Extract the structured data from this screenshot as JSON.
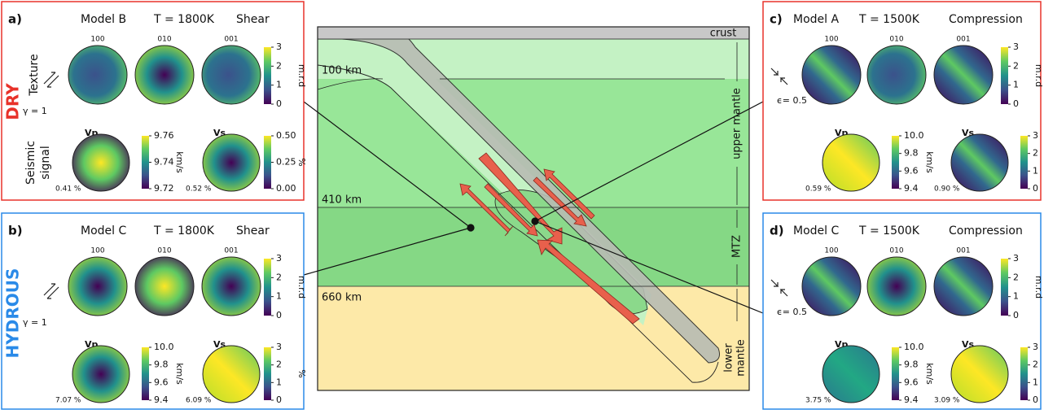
{
  "side_labels": {
    "dry": "DRY",
    "hydrous": "HYDROUS"
  },
  "row_labels": {
    "texture": "Texture",
    "seismic": [
      "Seismic",
      "signal"
    ]
  },
  "panels": [
    {
      "label": "a)",
      "model": "Model B",
      "temperature": "T = 1800K",
      "deformation": "Shear",
      "strain": "γ = 1",
      "pole_figures": [
        "100",
        "010",
        "001"
      ],
      "texture_ticks": [
        "3",
        "2",
        "1",
        "0"
      ],
      "texture_unit": "m.r.d",
      "vp_label": "Vp",
      "vp_ticks": [
        "9.76",
        "9.74",
        "9.72"
      ],
      "vp_unit": "km/s",
      "vp_anisotropy": "0.41 %",
      "vs_label": "Vs",
      "vs_ticks": [
        "0.50",
        "0.25",
        "0.00"
      ],
      "vs_unit": "%",
      "vs_anisotropy": "0.52 %"
    },
    {
      "label": "b)",
      "model": "Model C",
      "temperature": "T = 1800K",
      "deformation": "Shear",
      "strain": "γ = 1",
      "pole_figures": [
        "100",
        "010",
        "001"
      ],
      "texture_ticks": [
        "3",
        "2",
        "1",
        "0"
      ],
      "texture_unit": "m.r.d",
      "vp_label": "Vp",
      "vp_ticks": [
        "10.0",
        "9.8",
        "9.6",
        "9.4"
      ],
      "vp_unit": "km/s",
      "vp_anisotropy": "7.07 %",
      "vs_label": "Vs",
      "vs_ticks": [
        "3",
        "2",
        "1",
        "0"
      ],
      "vs_unit": "%",
      "vs_anisotropy": "6.09 %"
    },
    {
      "label": "c)",
      "model": "Model A",
      "temperature": "T = 1500K",
      "deformation": "Compression",
      "strain": "ϵ= 0.5",
      "pole_figures": [
        "100",
        "010",
        "001"
      ],
      "texture_ticks": [
        "3",
        "2",
        "1",
        "0"
      ],
      "texture_unit": "m.r.d",
      "vp_label": "Vp",
      "vp_ticks": [
        "10.0",
        "9.8",
        "9.6",
        "9.4"
      ],
      "vp_unit": "km/s",
      "vp_anisotropy": "0.59 %",
      "vs_label": "Vs",
      "vs_ticks": [
        "3",
        "2",
        "1",
        "0"
      ],
      "vs_unit": "%",
      "vs_anisotropy": "0.90 %"
    },
    {
      "label": "d)",
      "model": "Model C",
      "temperature": "T = 1500K",
      "deformation": "Compression",
      "strain": "ϵ= 0.5",
      "pole_figures": [
        "100",
        "010",
        "001"
      ],
      "texture_ticks": [
        "3",
        "2",
        "1",
        "0"
      ],
      "texture_unit": "m.r.d",
      "vp_label": "Vp",
      "vp_ticks": [
        "10.0",
        "9.8",
        "9.6",
        "9.4"
      ],
      "vp_unit": "km/s",
      "vp_anisotropy": "3.75 %",
      "vs_label": "Vs",
      "vs_ticks": [
        "3",
        "2",
        "1",
        "0"
      ],
      "vs_unit": "%",
      "vs_anisotropy": "3.09 %"
    }
  ],
  "cross_section": {
    "crust": "crust",
    "depths": [
      "100 km",
      "410 km",
      "660 km"
    ],
    "zones": {
      "upper_mantle": "upper mantle",
      "mtz": "MTZ",
      "lower_mantle": [
        "lower",
        "mantle"
      ]
    }
  }
}
